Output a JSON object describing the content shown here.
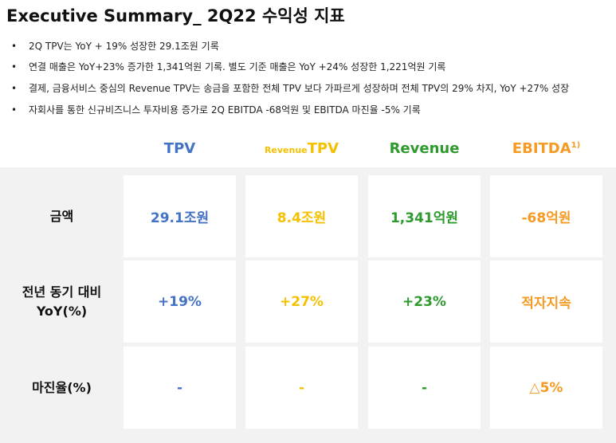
{
  "title": "Executive Summary_ 2Q22 수익성 지표",
  "bullets": [
    "2Q TPV는  YoY + 19% 성장한 29.1조원 기록",
    "연결 매출은 YoY+23% 증가한 1,341억원 기록. 별도 기준 매출은  YoY +24% 성장한 1,221억원 기록",
    "결제, 금융서비스 중심의 Revenue TPV는 송금을 포함한 전체 TPV 보다 가파르게 성장하며 전체 TPV의 29% 차지, YoY +27% 성장",
    "자회사를 통한 신규비즈니스 투자비용 증가로 2Q EBITDA -68억원 및 EBITDA 마진율 -5% 기록"
  ],
  "table": {
    "columns": [
      {
        "main": "TPV",
        "color": "#4472c4"
      },
      {
        "small": "Revenue",
        "main": "TPV",
        "color": "#f5c000"
      },
      {
        "main": "Revenue",
        "color": "#2e9a2e"
      },
      {
        "main": "EBITDA",
        "sup": "1)",
        "color": "#f59a23"
      }
    ],
    "rows": [
      {
        "label": [
          "금액"
        ],
        "cells": [
          "29.1조원",
          "8.4조원",
          "1,341억원",
          "-68억원"
        ]
      },
      {
        "label": [
          "전년 동기 대비",
          "YoY(%)"
        ],
        "cells": [
          "+19%",
          "+27%",
          "+23%",
          "적자지속"
        ]
      },
      {
        "label": [
          "마진율(%)"
        ],
        "cells": [
          "-",
          "-",
          "-",
          "△5%"
        ]
      }
    ]
  }
}
